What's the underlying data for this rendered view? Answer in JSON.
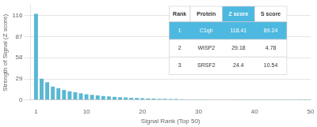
{
  "chart_data": {
    "type": "bar",
    "xlabel": "Signal Rank (Top 50)",
    "ylabel": "Strength of Signal (Z score)",
    "x": [
      1,
      2,
      3,
      4,
      5,
      6,
      7,
      8,
      9,
      10,
      11,
      12,
      13,
      14,
      15,
      16,
      17,
      18,
      19,
      20,
      21,
      22,
      23,
      24,
      25,
      26,
      27,
      28,
      29,
      30,
      31,
      32,
      33,
      34,
      35,
      36,
      37,
      38,
      39,
      40,
      41,
      42,
      43,
      44,
      45,
      46,
      47,
      48,
      49,
      50
    ],
    "values": [
      118.41,
      29.18,
      24.4,
      18.5,
      16.2,
      13.8,
      12.0,
      10.5,
      9.2,
      8.0,
      7.0,
      6.2,
      5.5,
      4.9,
      4.4,
      3.9,
      3.5,
      3.1,
      2.8,
      2.5,
      2.2,
      2.0,
      1.8,
      1.6,
      1.4,
      1.3,
      1.1,
      1.0,
      0.9,
      0.8,
      0.75,
      0.7,
      0.65,
      0.6,
      0.55,
      0.5,
      0.46,
      0.42,
      0.39,
      0.36,
      0.33,
      0.3,
      0.28,
      0.26,
      0.24,
      0.22,
      0.2,
      0.18,
      0.16,
      0.14
    ],
    "color": "#5bb8d4",
    "xlim": [
      0,
      50
    ],
    "xticks": [
      1,
      10,
      20,
      30,
      40,
      50
    ],
    "ylim": [
      0,
      130
    ],
    "yticks": [
      0,
      29,
      58,
      87,
      116
    ],
    "grid": true,
    "table": {
      "headers": [
        "Rank",
        "Protein",
        "Z score",
        "S score"
      ],
      "rows": [
        [
          "1",
          "C1qb",
          "118.41",
          "89.24"
        ],
        [
          "2",
          "WISP2",
          "29.18",
          "4.78"
        ],
        [
          "3",
          "SRSF2",
          "24.4",
          "10.54"
        ]
      ],
      "color": "#4db8e0"
    }
  }
}
